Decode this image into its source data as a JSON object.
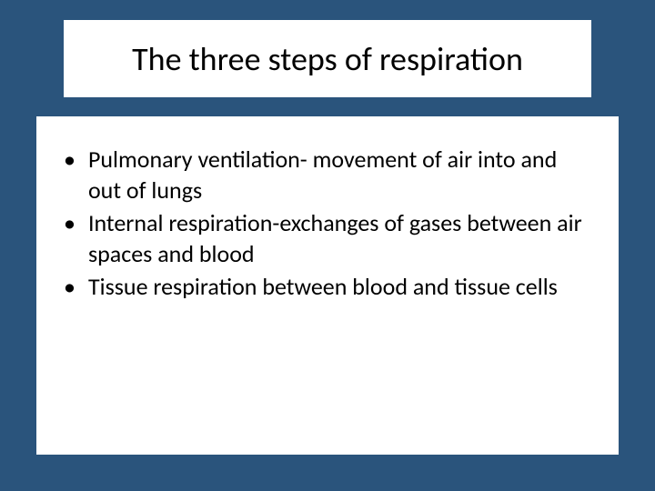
{
  "slide": {
    "background_color": "#2a547c",
    "title": {
      "text": "The three steps of respiration",
      "font_size": 36,
      "color": "#000000",
      "background_color": "#ffffff"
    },
    "content": {
      "background_color": "#ffffff",
      "bullets": [
        {
          "text": "Pulmonary ventilation- movement of air into and out of lungs"
        },
        {
          "text": "Internal respiration-exchanges of gases between air spaces and blood"
        },
        {
          "text": "Tissue respiration between blood and tissue cells"
        }
      ],
      "bullet_marker": "•",
      "font_size": 26,
      "text_color": "#000000"
    }
  }
}
